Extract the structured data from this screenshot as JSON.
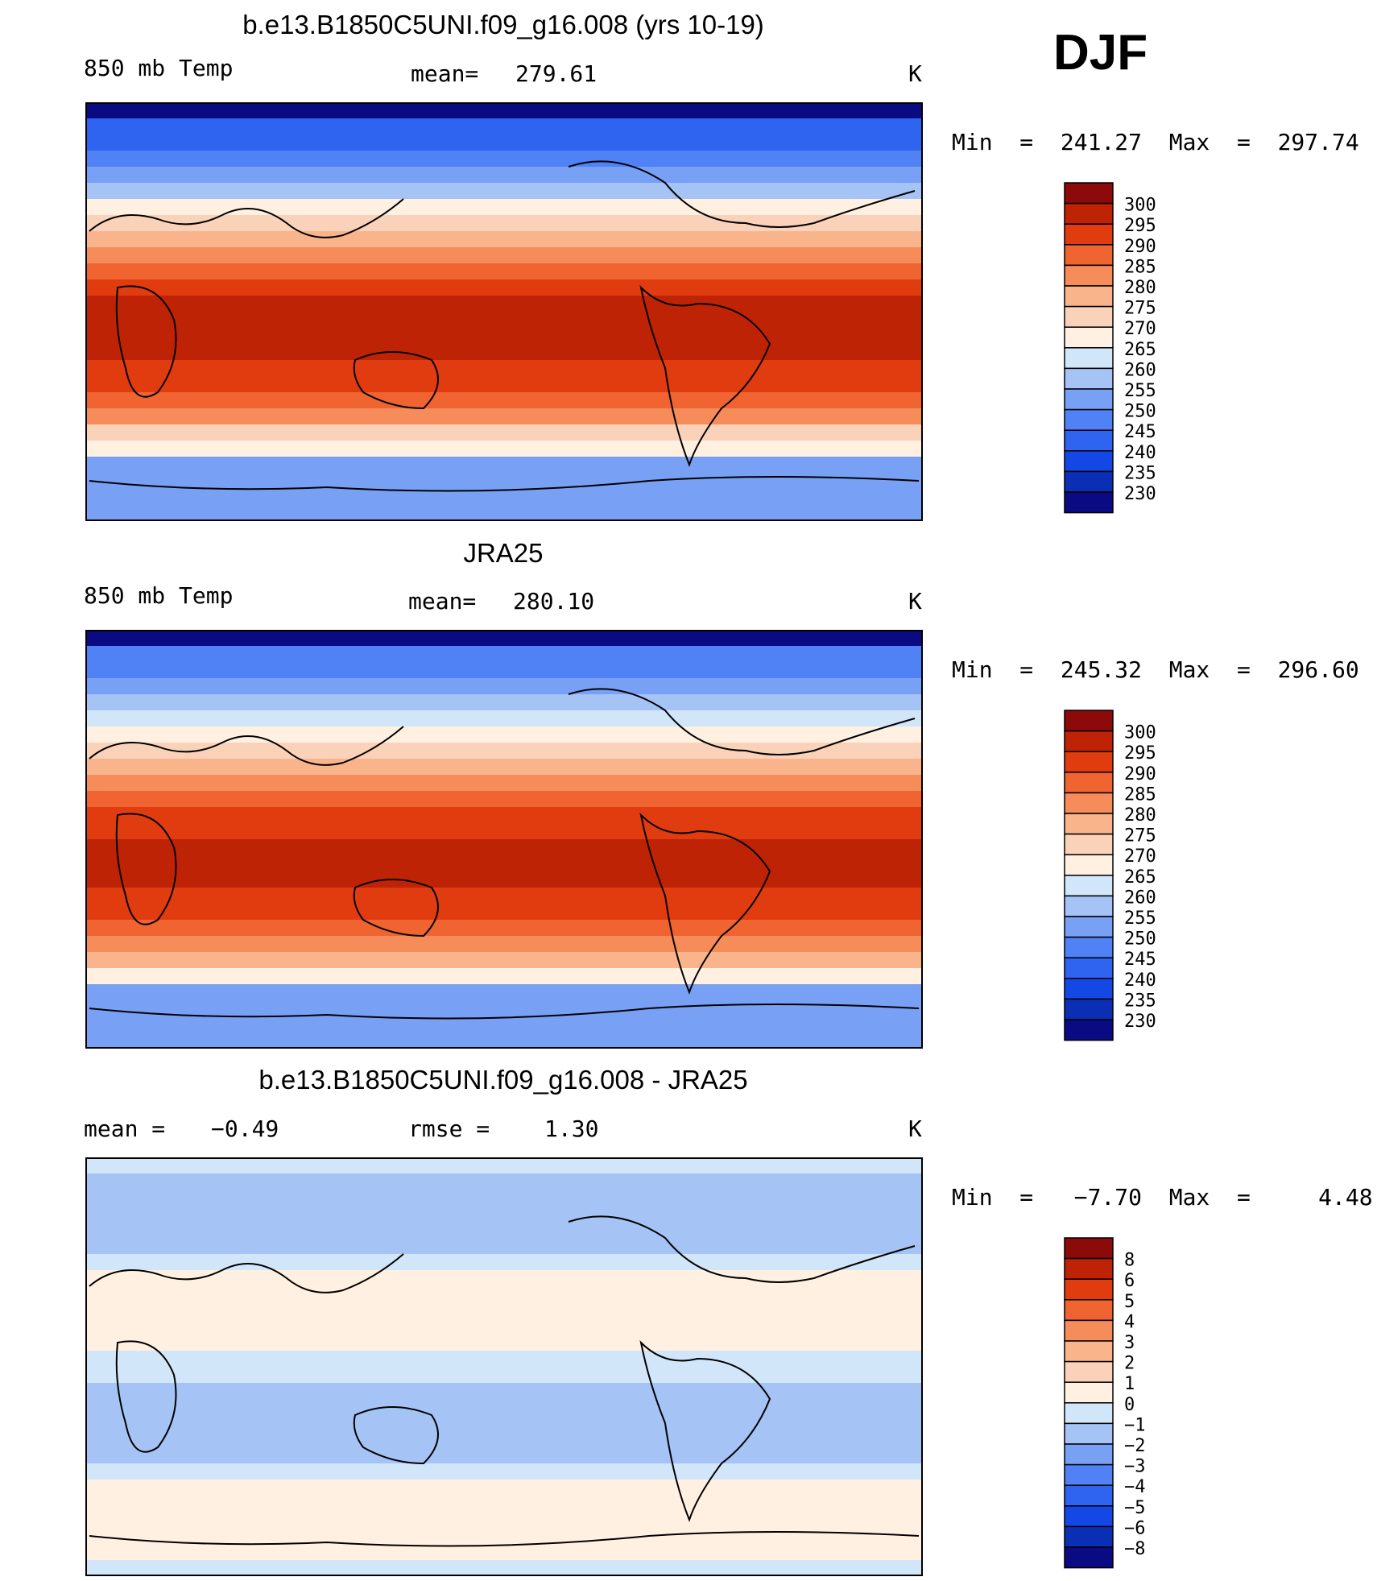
{
  "season": "DJF",
  "colors": {
    "temp_scale": [
      "#0a0a82",
      "#0a2fb4",
      "#1448e6",
      "#2e64f0",
      "#5082f5",
      "#78a0f5",
      "#a5c3f5",
      "#d2e6fa",
      "#fff0e1",
      "#fad2b9",
      "#fab48c",
      "#f58c5a",
      "#f06432",
      "#e13c0f",
      "#be2305",
      "#8c0a0a"
    ],
    "diff_scale": [
      "#0a0a82",
      "#0a2fb4",
      "#1448e6",
      "#2e64f0",
      "#5082f5",
      "#78a0f5",
      "#a5c3f5",
      "#d2e6fa",
      "#fff0e1",
      "#fad2b9",
      "#fab48c",
      "#f58c5a",
      "#f06432",
      "#e13c0f",
      "#be2305",
      "#8c0a0a"
    ]
  },
  "chart_data": [
    {
      "type": "heatmap",
      "title": "b.e13.B1850C5UNI.f09_g16.008 (yrs 10-19)",
      "left_label": "850 mb Temp",
      "mean_label": "mean=",
      "mean_value": "279.61",
      "units": "K",
      "range_text": "Min  =  241.27  Max  =  297.74",
      "min": 241.27,
      "max": 297.74,
      "mean": 279.61,
      "colorbar_labels": [
        "300",
        "295",
        "290",
        "285",
        "280",
        "275",
        "270",
        "265",
        "260",
        "255",
        "250",
        "245",
        "240",
        "235",
        "230"
      ],
      "colorbar_levels": [
        230,
        235,
        240,
        245,
        250,
        255,
        260,
        265,
        270,
        275,
        280,
        285,
        290,
        295,
        300
      ]
    },
    {
      "type": "heatmap",
      "title": "JRA25",
      "left_label": "850 mb Temp",
      "mean_label": "mean=",
      "mean_value": "280.10",
      "units": "K",
      "range_text": "Min  =  245.32  Max  =  296.60",
      "min": 245.32,
      "max": 296.6,
      "mean": 280.1,
      "colorbar_labels": [
        "300",
        "295",
        "290",
        "285",
        "280",
        "275",
        "270",
        "265",
        "260",
        "255",
        "250",
        "245",
        "240",
        "235",
        "230"
      ],
      "colorbar_levels": [
        230,
        235,
        240,
        245,
        250,
        255,
        260,
        265,
        270,
        275,
        280,
        285,
        290,
        295,
        300
      ]
    },
    {
      "type": "heatmap",
      "title": "b.e13.B1850C5UNI.f09_g16.008 - JRA25",
      "left_label": "mean =",
      "mean_label": "",
      "mean_value": "-0.49",
      "rmse_label": "rmse =",
      "rmse_value": "1.30",
      "units": "K",
      "range_text": "Min  =   -7.70  Max  =     4.48",
      "min": -7.7,
      "max": 4.48,
      "mean": -0.49,
      "rmse": 1.3,
      "colorbar_labels": [
        "8",
        "6",
        "5",
        "4",
        "3",
        "2",
        "1",
        "0",
        "-1",
        "-2",
        "-3",
        "-4",
        "-5",
        "-6",
        "-8"
      ],
      "colorbar_levels": [
        -8,
        -6,
        -5,
        -4,
        -3,
        -2,
        -1,
        0,
        1,
        2,
        3,
        4,
        5,
        6,
        8
      ]
    }
  ]
}
